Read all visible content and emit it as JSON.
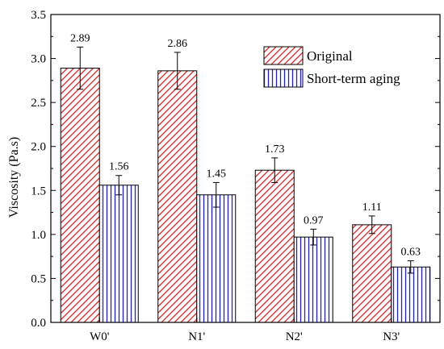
{
  "chart_data": {
    "type": "bar",
    "categories": [
      "W0'",
      "N1'",
      "N2'",
      "N3'"
    ],
    "series": [
      {
        "name": "Original",
        "values": [
          2.89,
          2.86,
          1.73,
          1.11
        ],
        "error": [
          0.24,
          0.21,
          0.14,
          0.1
        ],
        "labels": [
          "2.89",
          "2.86",
          "1.73",
          "1.11"
        ],
        "color": "#e02020",
        "pattern": "diagonal-hatch"
      },
      {
        "name": "Short-term aging",
        "values": [
          1.56,
          1.45,
          0.97,
          0.63
        ],
        "error": [
          0.11,
          0.14,
          0.09,
          0.07
        ],
        "labels": [
          "1.56",
          "1.45",
          "0.97",
          "0.63"
        ],
        "color": "#2020d0",
        "pattern": "vertical-lines"
      }
    ],
    "title": "",
    "xlabel": "",
    "ylabel": "Viscosity (Pa.s)",
    "ylim": [
      0.0,
      3.5
    ],
    "yticks": [
      "0.0",
      "0.5",
      "1.0",
      "1.5",
      "2.0",
      "2.5",
      "3.0",
      "3.5"
    ],
    "grid": false,
    "legend_position": "top-right"
  }
}
